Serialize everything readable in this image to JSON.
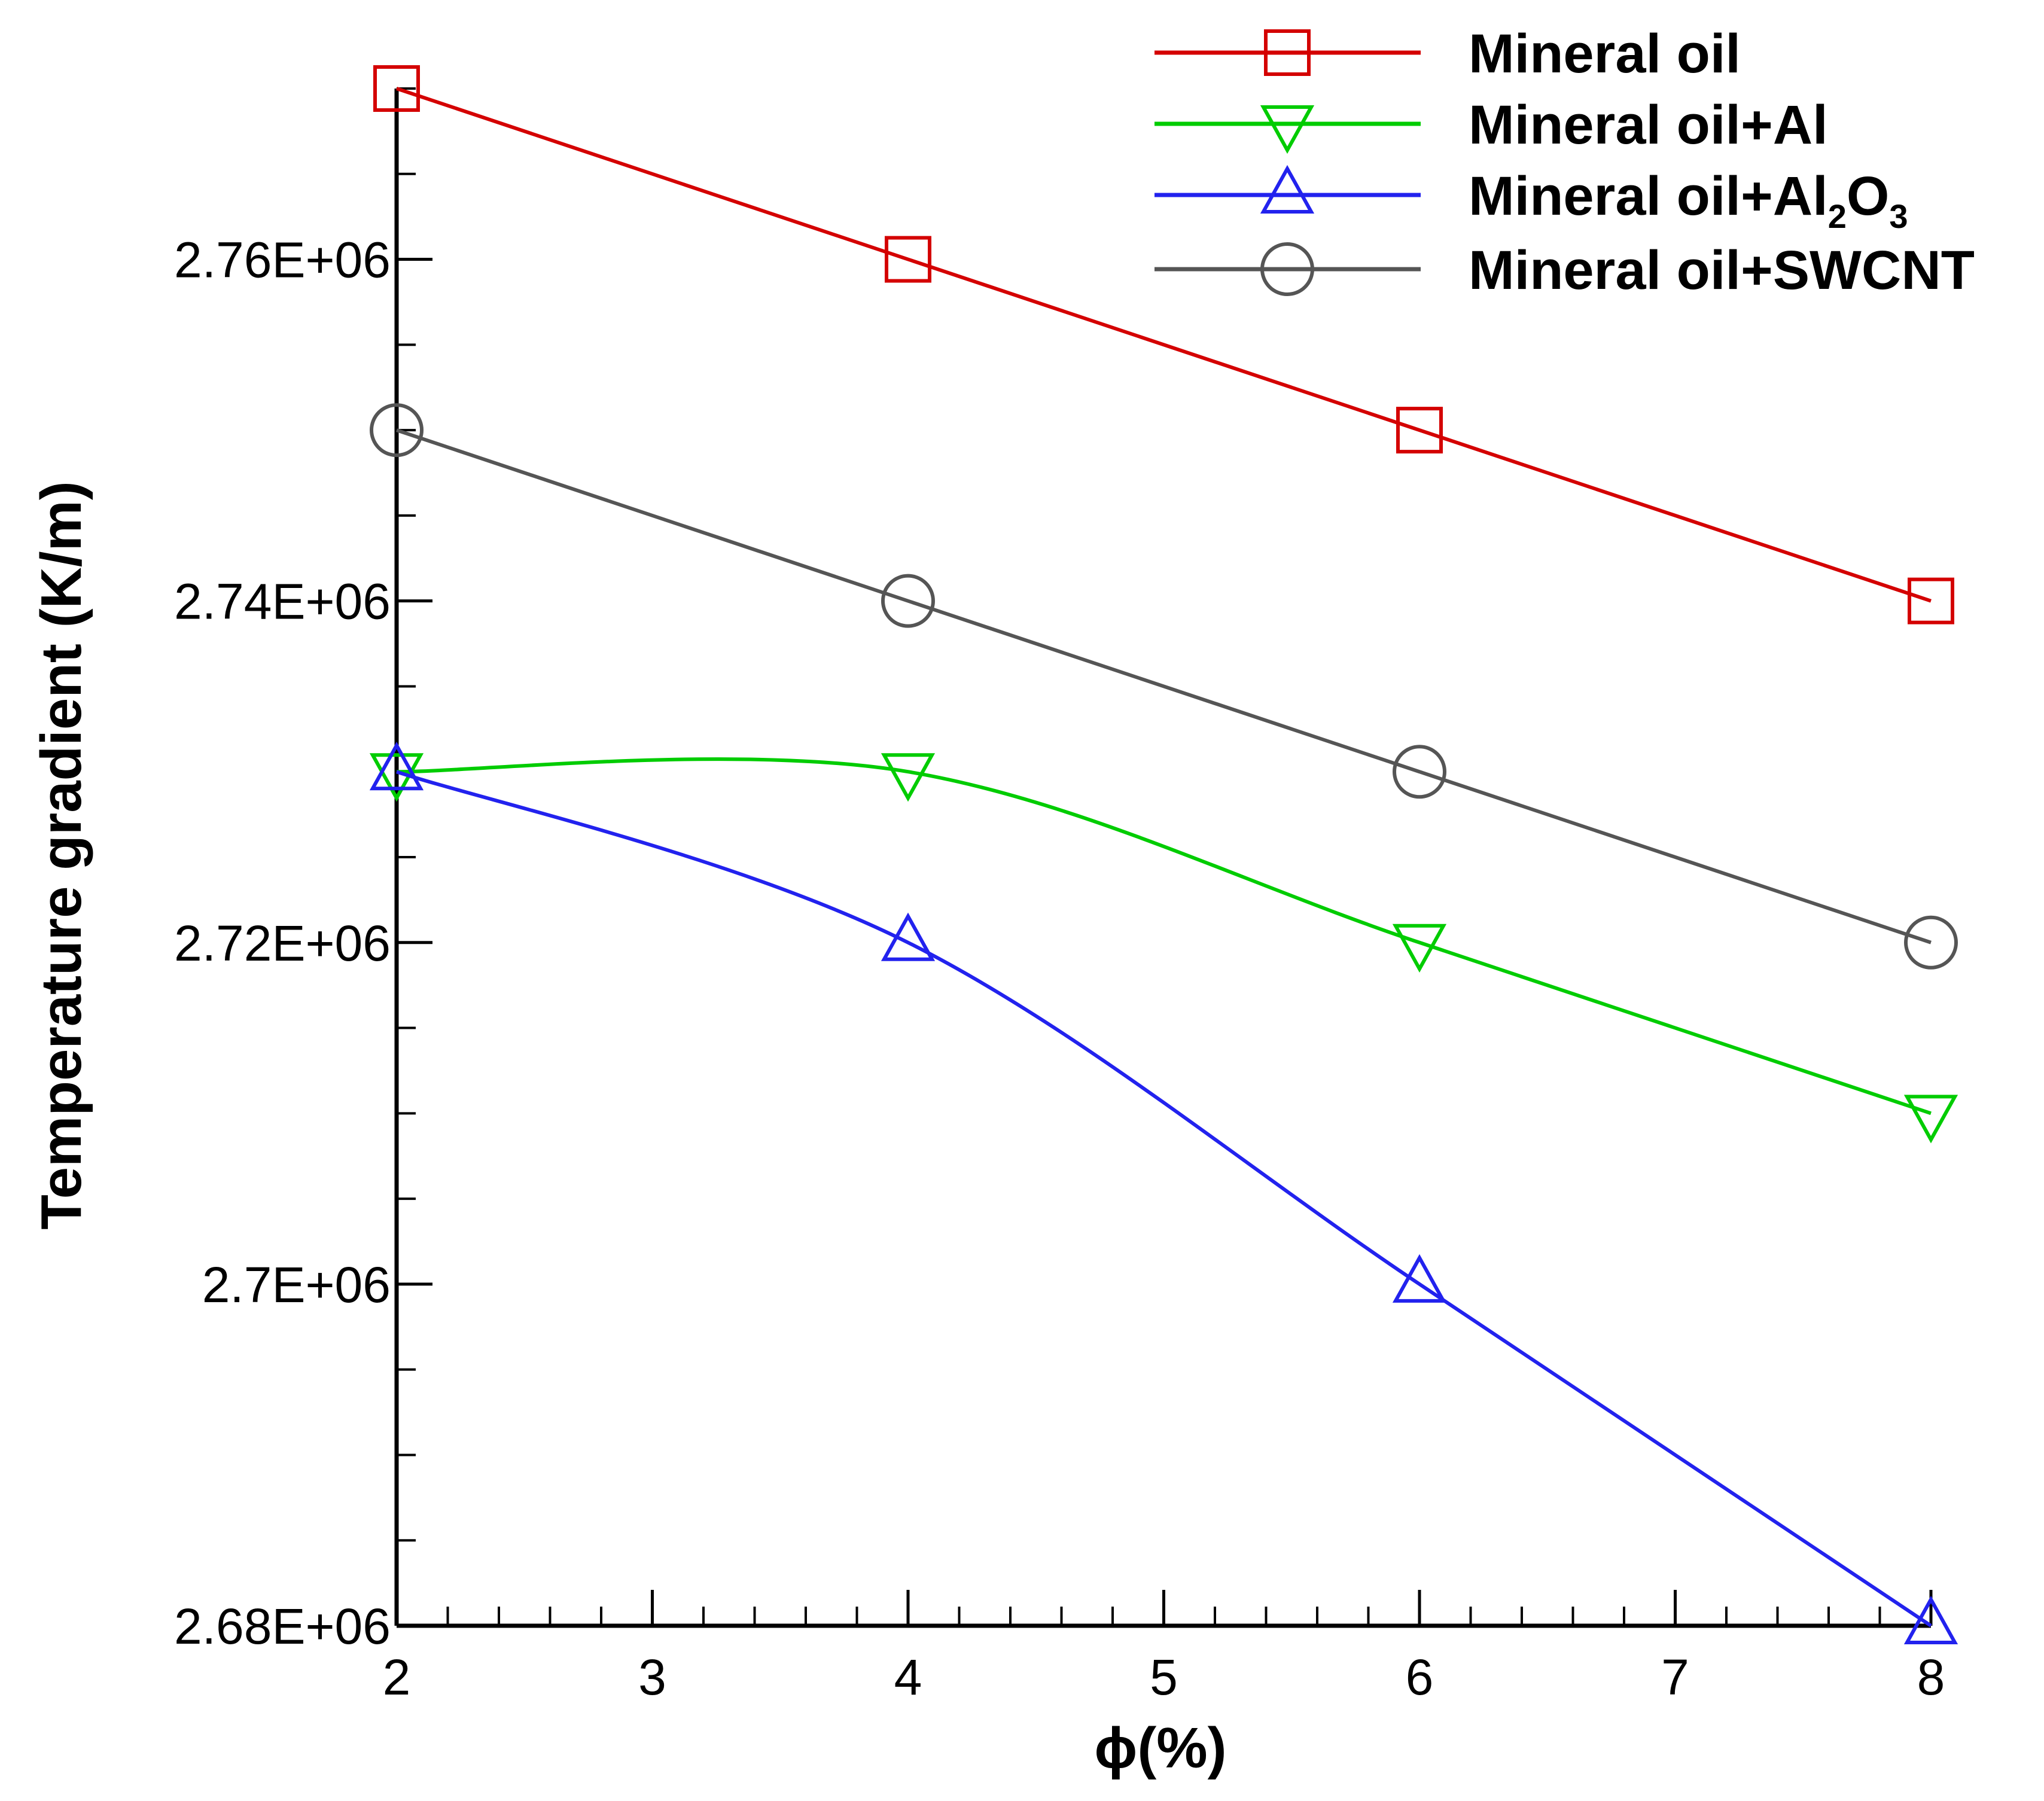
{
  "chart_data": {
    "type": "line",
    "title": "",
    "xlabel": "ϕ(%)",
    "ylabel": "Temperature gradient (K/m)",
    "xlim": [
      2,
      8
    ],
    "ylim": [
      2680000,
      2770000
    ],
    "x_ticks": [
      2,
      3,
      4,
      5,
      6,
      7,
      8
    ],
    "x_tick_labels": [
      "2",
      "3",
      "4",
      "5",
      "6",
      "7",
      "8"
    ],
    "y_ticks": [
      2680000,
      2700000,
      2720000,
      2740000,
      2760000
    ],
    "y_tick_labels": [
      "2.68E+06",
      "2.7E+06",
      "2.72E+06",
      "2.74E+06",
      "2.76E+06"
    ],
    "legend_position": "top-right",
    "grid": false,
    "series": [
      {
        "name": "Mineral oil",
        "legend_label": "Mineral oil",
        "color": "#d40000",
        "marker": "square",
        "x": [
          2,
          4,
          6,
          8
        ],
        "y": [
          2770000,
          2760000,
          2750000,
          2740000
        ]
      },
      {
        "name": "Mineral oil+Al",
        "legend_label": "Mineral oil+Al",
        "color": "#00cc00",
        "marker": "triangle-down",
        "x": [
          2,
          4,
          6,
          8
        ],
        "y": [
          2730000,
          2730000,
          2720000,
          2710000
        ]
      },
      {
        "name": "Mineral oil+Al2O3",
        "legend_label": "Mineral oil+Al",
        "legend_sub1": "2",
        "legend_mid": "O",
        "legend_sub2": "3",
        "color": "#2222ee",
        "marker": "triangle-up",
        "x": [
          2,
          4,
          6,
          8
        ],
        "y": [
          2730000,
          2720000,
          2700000,
          2680000
        ]
      },
      {
        "name": "Mineral oil+SWCNT",
        "legend_label": "Mineral oil+SWCNT",
        "color": "#555555",
        "marker": "circle",
        "x": [
          2,
          4,
          6,
          8
        ],
        "y": [
          2750000,
          2740000,
          2730000,
          2720000
        ]
      }
    ]
  }
}
